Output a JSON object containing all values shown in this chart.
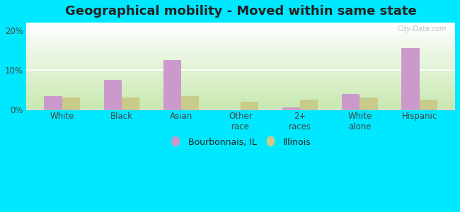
{
  "title": "Geographical mobility - Moved within same state",
  "categories": [
    "White",
    "Black",
    "Asian",
    "Other\nrace",
    "2+\nraces",
    "White\nalone",
    "Hispanic"
  ],
  "bourbonnais": [
    3.5,
    7.5,
    12.5,
    0.0,
    0.5,
    4.0,
    15.5
  ],
  "illinois": [
    3.0,
    3.0,
    3.5,
    2.0,
    2.5,
    3.0,
    2.5
  ],
  "color_bourbonnais": "#cc99cc",
  "color_illinois": "#c8cc88",
  "background_outer": "#00e8ff",
  "grad_bottom": "#c8e8b0",
  "grad_top": "#ffffff",
  "ylim": [
    0,
    22
  ],
  "yticks": [
    0,
    10,
    20
  ],
  "ytick_labels": [
    "0%",
    "10%",
    "20%"
  ],
  "legend_label_1": "Bourbonnais, IL",
  "legend_label_2": "Illinois",
  "bar_width": 0.3,
  "title_fontsize": 13,
  "axis_fontsize": 8.5,
  "legend_fontsize": 9,
  "title_color": "#222222",
  "tick_color": "#444444",
  "watermark": "City-Data.com"
}
